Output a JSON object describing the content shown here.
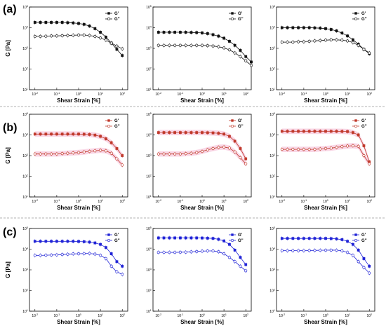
{
  "panel_labels": [
    "(a)",
    "(b)",
    "(c)"
  ],
  "ylabel": "G [Pa]",
  "colors": {
    "a": "#111111",
    "b": "#c0392b",
    "b_band": "#f4b6d2",
    "c": "#1f22d6"
  },
  "chart_data": [
    {
      "type": "line",
      "row": 0,
      "col": 0,
      "xlabel": "Shear Strain [%]",
      "ylabel": "G [Pa]",
      "xscale": "log",
      "yscale": "log",
      "xlim": [
        0.01,
        100
      ],
      "ylim": [
        10,
        100000
      ],
      "x": [
        0.01,
        0.0178,
        0.0316,
        0.0562,
        0.1,
        0.178,
        0.316,
        0.562,
        1,
        1.78,
        3.16,
        5.62,
        10,
        17.8,
        31.6,
        56.2,
        100
      ],
      "series": [
        {
          "name": "G'",
          "marker": "filled-square",
          "values": [
            18000,
            18000,
            18000,
            18000,
            18000,
            18000,
            17500,
            17000,
            16000,
            14500,
            12000,
            9000,
            6000,
            3500,
            1800,
            900,
            450
          ]
        },
        {
          "name": "G''",
          "marker": "open-circle",
          "values": [
            3800,
            3800,
            3900,
            4000,
            4000,
            4100,
            4200,
            4300,
            4400,
            4400,
            4200,
            3800,
            3200,
            2500,
            1800,
            1300,
            950
          ]
        }
      ]
    },
    {
      "type": "line",
      "row": 0,
      "col": 1,
      "xlabel": "Shear Strain [%]",
      "ylabel": "",
      "xscale": "log",
      "yscale": "log",
      "xlim": [
        0.01,
        100
      ],
      "ylim": [
        10,
        100000
      ],
      "x": [
        0.01,
        0.0178,
        0.0316,
        0.0562,
        0.1,
        0.178,
        0.316,
        0.562,
        1,
        1.78,
        3.16,
        5.62,
        10,
        17.8,
        31.6,
        56.2,
        100,
        178
      ],
      "series": [
        {
          "name": "G'",
          "marker": "filled-square",
          "values": [
            6000,
            6000,
            6000,
            6000,
            6000,
            6000,
            5900,
            5800,
            5600,
            5200,
            4600,
            3900,
            3100,
            2200,
            1400,
            800,
            400,
            220
          ]
        },
        {
          "name": "G''",
          "marker": "open-circle",
          "values": [
            1400,
            1400,
            1400,
            1400,
            1400,
            1400,
            1400,
            1400,
            1400,
            1350,
            1300,
            1200,
            1050,
            850,
            600,
            400,
            250,
            150
          ]
        }
      ]
    },
    {
      "type": "line",
      "row": 0,
      "col": 2,
      "xlabel": "Shear Strain [%]",
      "ylabel": "",
      "xscale": "log",
      "yscale": "log",
      "xlim": [
        0.01,
        100
      ],
      "ylim": [
        10,
        100000
      ],
      "x": [
        0.01,
        0.0178,
        0.0316,
        0.0562,
        0.1,
        0.178,
        0.316,
        0.562,
        1,
        1.78,
        3.16,
        5.62,
        10,
        17.8,
        31.6,
        56.2,
        100
      ],
      "series": [
        {
          "name": "G'",
          "marker": "filled-square",
          "values": [
            10000,
            10000,
            10000,
            10000,
            10000,
            10000,
            9800,
            9500,
            9000,
            8200,
            7000,
            5500,
            4000,
            2600,
            1600,
            900,
            550
          ]
        },
        {
          "name": "G''",
          "marker": "open-circle",
          "values": [
            2000,
            2000,
            2000,
            2100,
            2100,
            2200,
            2300,
            2400,
            2500,
            2600,
            2600,
            2500,
            2300,
            1900,
            1400,
            900,
            600
          ]
        }
      ]
    },
    {
      "type": "line",
      "row": 1,
      "col": 0,
      "xlabel": "Shear Strain [%]",
      "ylabel": "G [Pa]",
      "xscale": "log",
      "yscale": "log",
      "xlim": [
        0.01,
        100
      ],
      "ylim": [
        10,
        100000
      ],
      "x": [
        0.01,
        0.0178,
        0.0316,
        0.0562,
        0.1,
        0.178,
        0.316,
        0.562,
        1,
        1.78,
        3.16,
        5.62,
        10,
        17.8,
        31.6,
        56.2,
        100
      ],
      "series": [
        {
          "name": "G'",
          "marker": "filled-square",
          "values": [
            11000,
            11000,
            11000,
            11000,
            11000,
            11000,
            11000,
            11000,
            11000,
            10800,
            10500,
            9800,
            8500,
            6500,
            4200,
            2200,
            1000
          ]
        },
        {
          "name": "G''",
          "marker": "open-circle",
          "values": [
            1200,
            1200,
            1200,
            1200,
            1200,
            1250,
            1300,
            1350,
            1400,
            1500,
            1600,
            1700,
            1800,
            1700,
            1300,
            700,
            350
          ]
        }
      ]
    },
    {
      "type": "line",
      "row": 1,
      "col": 1,
      "xlabel": "Shear Strain [%]",
      "ylabel": "",
      "xscale": "log",
      "yscale": "log",
      "xlim": [
        0.01,
        100
      ],
      "ylim": [
        10,
        100000
      ],
      "x": [
        0.01,
        0.0178,
        0.0316,
        0.0562,
        0.1,
        0.178,
        0.316,
        0.562,
        1,
        1.78,
        3.16,
        5.62,
        10,
        17.8,
        31.6,
        56.2,
        100
      ],
      "series": [
        {
          "name": "G'",
          "marker": "filled-square",
          "values": [
            13000,
            13000,
            13000,
            13000,
            13000,
            13000,
            13000,
            13000,
            13000,
            12800,
            12500,
            12000,
            11000,
            8500,
            5000,
            2200,
            700
          ]
        },
        {
          "name": "G''",
          "marker": "open-circle",
          "values": [
            1200,
            1200,
            1200,
            1200,
            1200,
            1250,
            1300,
            1400,
            1600,
            1900,
            2200,
            2500,
            2600,
            2300,
            1500,
            800,
            400
          ]
        }
      ]
    },
    {
      "type": "line",
      "row": 1,
      "col": 2,
      "xlabel": "Shear Strain [%]",
      "ylabel": "",
      "xscale": "log",
      "yscale": "log",
      "xlim": [
        0.01,
        100
      ],
      "ylim": [
        10,
        100000
      ],
      "x": [
        0.01,
        0.0178,
        0.0316,
        0.0562,
        0.1,
        0.178,
        0.316,
        0.562,
        1,
        1.78,
        3.16,
        5.62,
        10,
        17.8,
        31.6,
        56.2,
        100
      ],
      "series": [
        {
          "name": "G'",
          "marker": "filled-square",
          "values": [
            15000,
            15000,
            15000,
            15000,
            15000,
            15000,
            15000,
            15000,
            15000,
            15000,
            15000,
            14800,
            14500,
            13000,
            10000,
            3000,
            500
          ]
        },
        {
          "name": "G''",
          "marker": "open-circle",
          "values": [
            2000,
            2000,
            2000,
            2000,
            2000,
            2000,
            2000,
            2100,
            2200,
            2300,
            2500,
            2700,
            2900,
            3000,
            2800,
            1000,
            400
          ]
        }
      ]
    },
    {
      "type": "line",
      "row": 2,
      "col": 0,
      "xlabel": "Shear Strain [%]",
      "ylabel": "G [Pa]",
      "xscale": "log",
      "yscale": "log",
      "xlim": [
        0.01,
        100
      ],
      "ylim": [
        10,
        100000
      ],
      "x": [
        0.01,
        0.0178,
        0.0316,
        0.0562,
        0.1,
        0.178,
        0.316,
        0.562,
        1,
        1.78,
        3.16,
        5.62,
        10,
        17.8,
        31.6,
        56.2,
        100
      ],
      "series": [
        {
          "name": "G'",
          "marker": "filled-square",
          "values": [
            24000,
            24000,
            24000,
            24000,
            24000,
            24000,
            24000,
            24000,
            23500,
            23000,
            22000,
            20000,
            17000,
            12000,
            6000,
            2500,
            1500
          ]
        },
        {
          "name": "G''",
          "marker": "open-circle",
          "values": [
            5000,
            5000,
            5100,
            5200,
            5300,
            5500,
            5700,
            5900,
            6000,
            6100,
            6200,
            5800,
            5000,
            3500,
            1500,
            800,
            600
          ]
        }
      ]
    },
    {
      "type": "line",
      "row": 2,
      "col": 1,
      "xlabel": "Shear Strain [%]",
      "ylabel": "",
      "xscale": "log",
      "yscale": "log",
      "xlim": [
        0.01,
        100
      ],
      "ylim": [
        10,
        100000
      ],
      "x": [
        0.01,
        0.0178,
        0.0316,
        0.0562,
        0.1,
        0.178,
        0.316,
        0.562,
        1,
        1.78,
        3.16,
        5.62,
        10,
        17.8,
        31.6,
        56.2,
        100
      ],
      "series": [
        {
          "name": "G'",
          "marker": "filled-square",
          "values": [
            35000,
            35000,
            35000,
            35000,
            35000,
            35000,
            35000,
            35000,
            34500,
            34000,
            33000,
            30000,
            25000,
            17000,
            9000,
            4000,
            1800
          ]
        },
        {
          "name": "G''",
          "marker": "open-circle",
          "values": [
            7000,
            7000,
            7000,
            7000,
            7100,
            7200,
            7400,
            7700,
            8000,
            8200,
            8200,
            7500,
            6000,
            4000,
            2500,
            1500,
            900
          ]
        }
      ]
    },
    {
      "type": "line",
      "row": 2,
      "col": 2,
      "xlabel": "Shear Strain [%]",
      "ylabel": "",
      "xscale": "log",
      "yscale": "log",
      "xlim": [
        0.01,
        100
      ],
      "ylim": [
        10,
        100000
      ],
      "x": [
        0.01,
        0.0178,
        0.0316,
        0.0562,
        0.1,
        0.178,
        0.316,
        0.562,
        1,
        1.78,
        3.16,
        5.62,
        10,
        17.8,
        31.6,
        56.2,
        100
      ],
      "series": [
        {
          "name": "G'",
          "marker": "filled-square",
          "values": [
            33000,
            33000,
            33000,
            33000,
            33000,
            33000,
            33000,
            33000,
            33000,
            32500,
            31500,
            29000,
            24000,
            17000,
            9000,
            3500,
            1500
          ]
        },
        {
          "name": "G''",
          "marker": "open-circle",
          "values": [
            8500,
            8500,
            8500,
            8500,
            8500,
            8600,
            8700,
            8800,
            8900,
            9000,
            8900,
            8300,
            7000,
            5000,
            2500,
            1300,
            700
          ]
        }
      ]
    }
  ]
}
